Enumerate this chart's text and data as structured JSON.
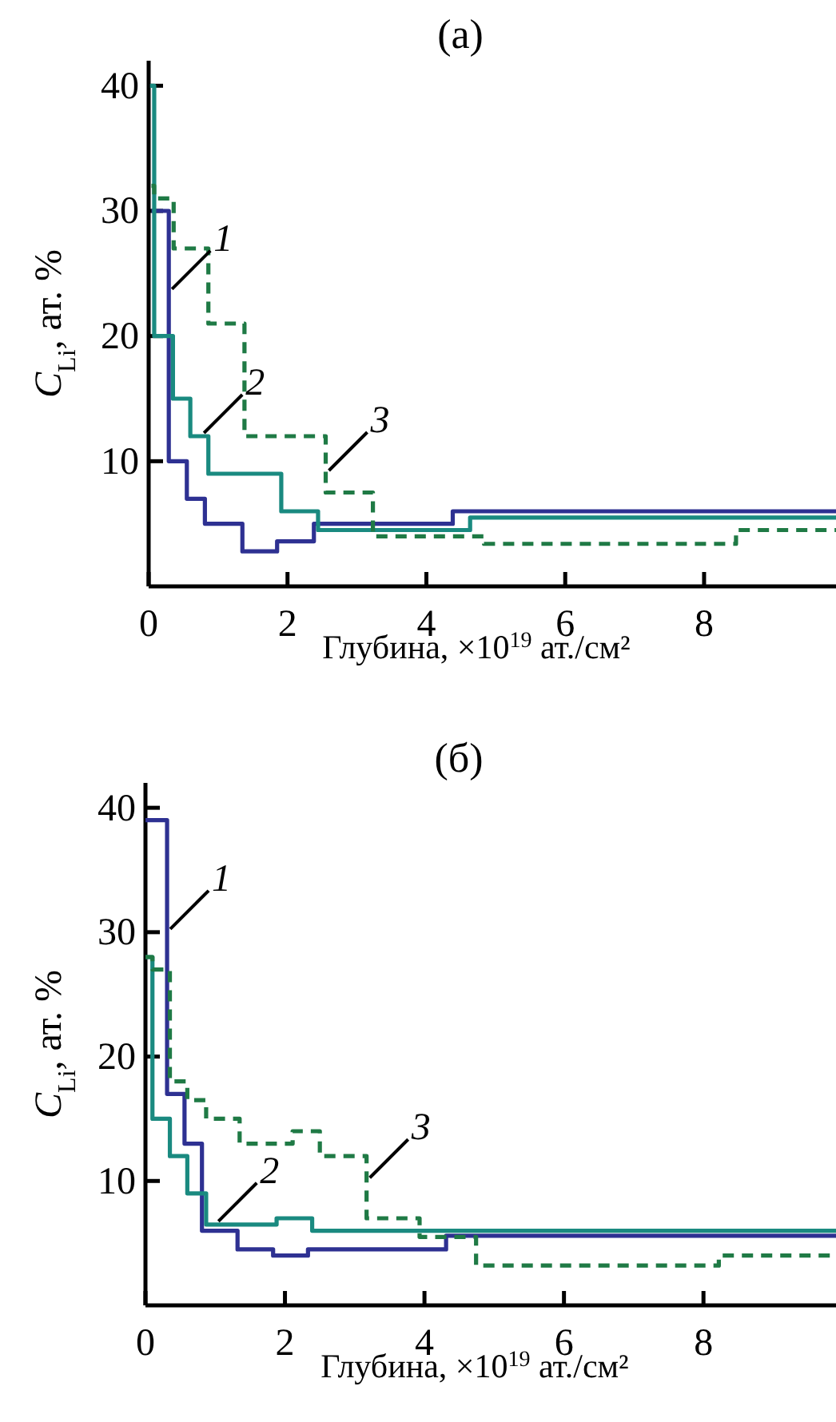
{
  "chart_data": [
    {
      "type": "step",
      "title": "(а)",
      "xlabel": "Глубина, ×10$^{19}$ ат./см²",
      "ylabel": "C$_{Li}$, ат. %",
      "xlim": [
        0,
        9.9
      ],
      "ylim": [
        0,
        42
      ],
      "xticks": [
        0,
        2,
        4,
        6,
        8
      ],
      "yticks": [
        10,
        20,
        30,
        40
      ],
      "series": [
        {
          "color": "#2e3192",
          "line_style": "solid",
          "x": [
            0.04,
            0.29,
            0.55,
            0.81,
            1.35,
            1.85,
            2.38,
            4.38,
            9.9
          ],
          "values": [
            30,
            10,
            7,
            5,
            2.8,
            3.6,
            5,
            6,
            6
          ]
        },
        {
          "color": "#1a8a80",
          "line_style": "solid",
          "x": [
            0.02,
            0.08,
            0.35,
            0.6,
            0.86,
            1.91,
            2.44,
            4.63,
            9.9
          ],
          "values": [
            40,
            20,
            15,
            12,
            9,
            6,
            4.5,
            5.5,
            5.5
          ]
        },
        {
          "color": "#1f7a45",
          "line_style": "dashed",
          "x": [
            0.04,
            0.08,
            0.36,
            0.86,
            1.38,
            2.55,
            3.23,
            4.83,
            8.46,
            9.9
          ],
          "values": [
            32,
            31,
            27,
            21,
            12,
            7.5,
            4,
            3.4,
            4.5,
            4.5
          ]
        }
      ],
      "annotations": [
        {
          "text": "1",
          "x": 0.29,
          "y": 23.5
        },
        {
          "text": "2",
          "x": 0.75,
          "y": 12
        },
        {
          "text": "3",
          "x": 2.55,
          "y": 9
        }
      ]
    },
    {
      "type": "step",
      "title": "(б)",
      "xlabel": "Глубина, ×10$^{19}$ ат./см²",
      "ylabel": "C$_{Li}$, ат. %",
      "xlim": [
        0,
        9.9
      ],
      "ylim": [
        0,
        42
      ],
      "xticks": [
        0,
        2,
        4,
        6,
        8
      ],
      "yticks": [
        10,
        20,
        30,
        40
      ],
      "series": [
        {
          "color": "#2e3192",
          "line_style": "solid",
          "x": [
            0,
            0.31,
            0.56,
            0.81,
            1.32,
            1.83,
            2.33,
            4.31,
            9.9
          ],
          "values": [
            39,
            17,
            13,
            6,
            4.5,
            4,
            4.5,
            5.6,
            5.6
          ]
        },
        {
          "color": "#1a8a80",
          "line_style": "solid",
          "x": [
            0,
            0.1,
            0.35,
            0.6,
            0.87,
            1.88,
            2.39,
            9.9
          ],
          "values": [
            28,
            15,
            12,
            9,
            6.5,
            7,
            6,
            6
          ]
        },
        {
          "color": "#1f7a45",
          "line_style": "dashed",
          "x": [
            0,
            0.1,
            0.35,
            0.6,
            0.87,
            1.35,
            2.11,
            2.5,
            3.17,
            3.93,
            4.74,
            8.22,
            9.9
          ],
          "values": [
            28,
            27,
            18,
            16.5,
            15,
            13,
            14,
            12,
            7,
            5.5,
            3.2,
            4,
            4
          ]
        }
      ],
      "annotations": [
        {
          "text": "1",
          "x": 0.31,
          "y": 30
        },
        {
          "text": "2",
          "x": 1.0,
          "y": 6.5
        },
        {
          "text": "3",
          "x": 3.17,
          "y": 10
        }
      ]
    }
  ]
}
